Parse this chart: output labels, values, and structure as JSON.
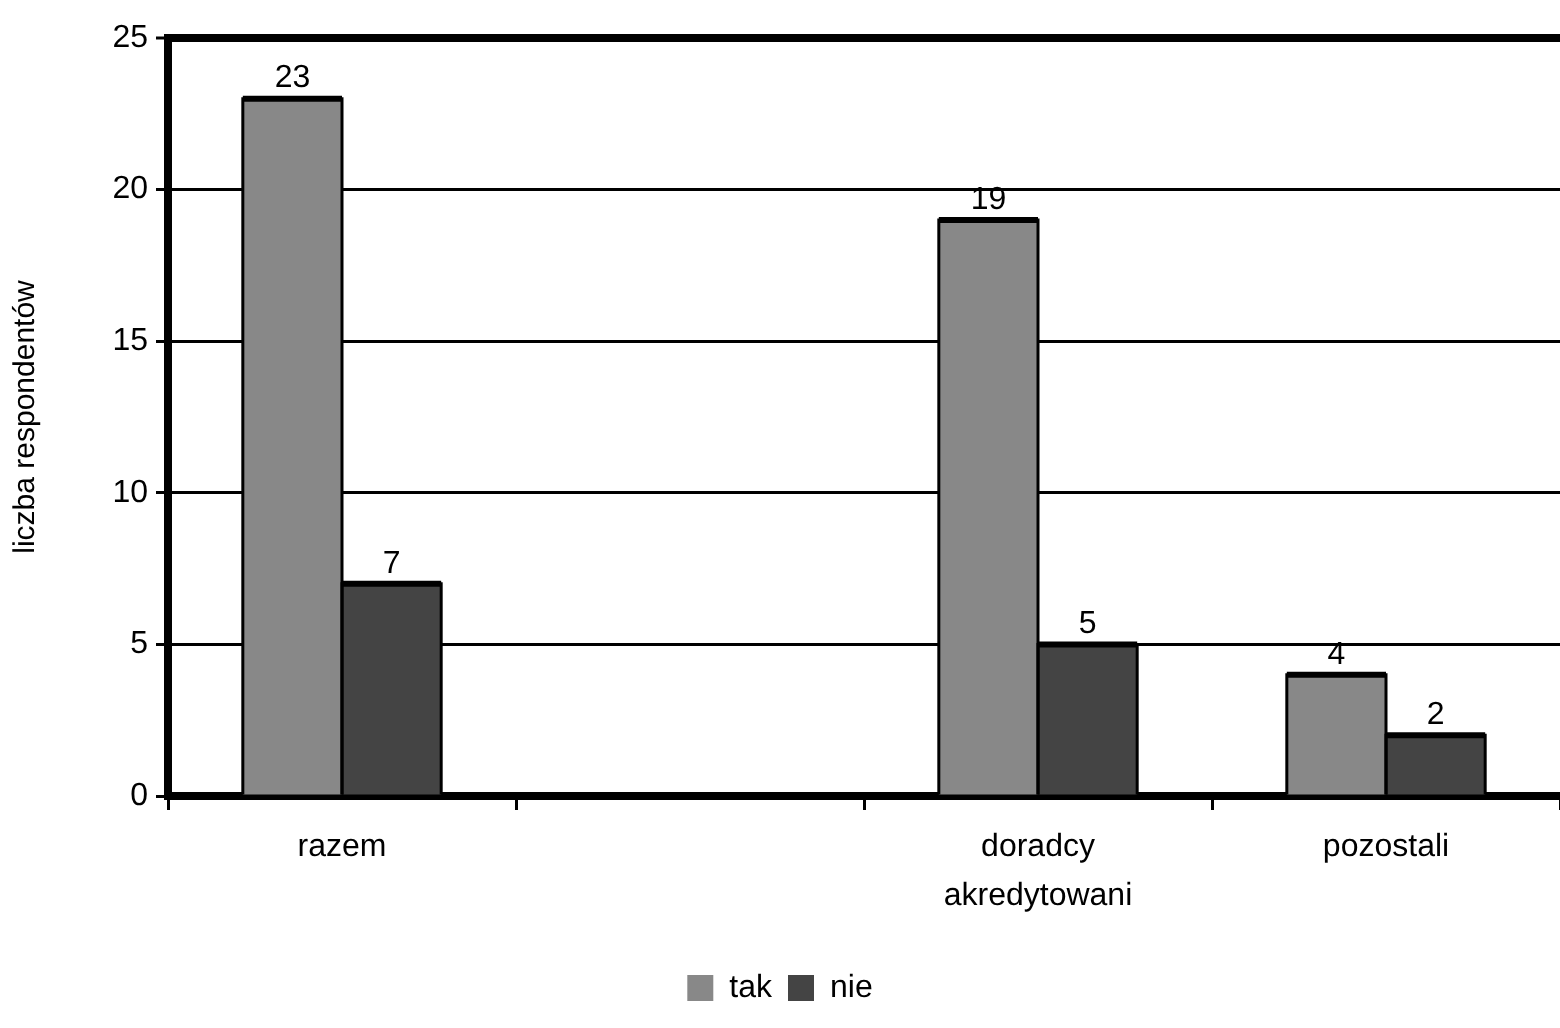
{
  "chart_data": {
    "type": "bar",
    "ylabel": "liczba respondentów",
    "categories": [
      "razem",
      null,
      "doradcy akredytowani",
      "pozostali"
    ],
    "series": [
      {
        "name": "tak",
        "color": "#888888",
        "values": [
          23,
          null,
          19,
          4
        ]
      },
      {
        "name": "nie",
        "color": "#444444",
        "values": [
          7,
          null,
          5,
          2
        ]
      }
    ],
    "ylim": [
      0,
      25
    ],
    "yticks": [
      0,
      5,
      10,
      15,
      20,
      25
    ],
    "grid": "y",
    "legend": "bottom",
    "data_labels": true
  }
}
